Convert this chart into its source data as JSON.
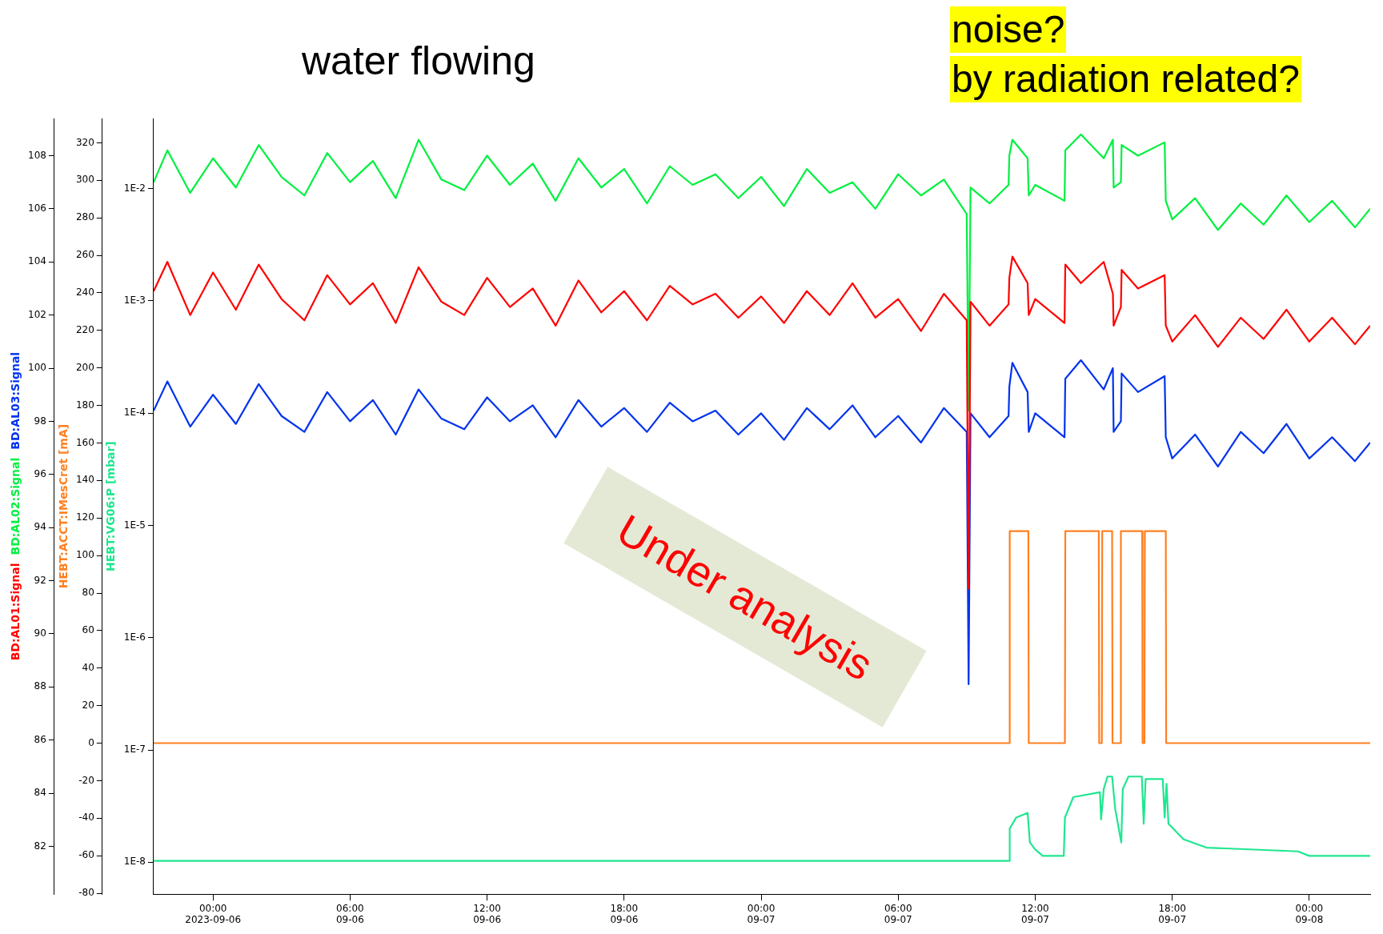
{
  "chart_data": {
    "type": "line",
    "annotations": [
      "water flowing",
      "noise?",
      "by radiation related?",
      "Under analysis"
    ],
    "x": [
      "2023-09-05T21:24",
      "2023-09-05T22:00",
      "2023-09-05T23:00",
      "2023-09-06T00:00",
      "2023-09-06T01:00",
      "2023-09-06T02:00",
      "2023-09-06T03:00",
      "2023-09-06T04:00",
      "2023-09-06T05:00",
      "2023-09-06T06:00",
      "2023-09-06T07:00",
      "2023-09-06T08:00",
      "2023-09-06T09:00",
      "2023-09-06T10:00",
      "2023-09-06T11:00",
      "2023-09-06T12:00",
      "2023-09-06T13:00",
      "2023-09-06T14:00",
      "2023-09-06T15:00",
      "2023-09-06T16:00",
      "2023-09-06T17:00",
      "2023-09-06T18:00",
      "2023-09-06T19:00",
      "2023-09-06T20:00",
      "2023-09-06T21:00",
      "2023-09-06T22:00",
      "2023-09-06T23:00",
      "2023-09-07T00:00",
      "2023-09-07T01:00",
      "2023-09-07T02:00",
      "2023-09-07T03:00",
      "2023-09-07T04:00",
      "2023-09-07T05:00",
      "2023-09-07T06:00",
      "2023-09-07T07:00",
      "2023-09-07T08:00",
      "2023-09-07T09:00",
      "2023-09-07T09:05",
      "2023-09-07T09:10",
      "2023-09-07T10:00",
      "2023-09-07T10:50",
      "2023-09-07T10:52",
      "2023-09-07T11:00",
      "2023-09-07T11:40",
      "2023-09-07T11:43",
      "2023-09-07T12:00",
      "2023-09-07T13:17",
      "2023-09-07T13:19",
      "2023-09-07T14:00",
      "2023-09-07T15:00",
      "2023-09-07T15:24",
      "2023-09-07T15:26",
      "2023-09-07T15:45",
      "2023-09-07T15:47",
      "2023-09-07T16:30",
      "2023-09-07T17:40",
      "2023-09-07T17:43",
      "2023-09-07T18:00",
      "2023-09-07T19:00",
      "2023-09-07T20:00",
      "2023-09-07T21:00",
      "2023-09-07T22:00",
      "2023-09-07T23:00",
      "2023-09-08T00:00",
      "2023-09-08T01:00",
      "2023-09-08T02:00",
      "2023-09-08T02:40"
    ],
    "series": [
      {
        "name": "BD:AL01:Signal",
        "color": "#ff0000",
        "values": [
          102.9,
          104.0,
          102.0,
          103.6,
          102.2,
          103.9,
          102.6,
          101.8,
          103.5,
          102.4,
          103.2,
          101.7,
          103.8,
          102.5,
          102.0,
          103.4,
          102.3,
          103.0,
          101.6,
          103.3,
          102.1,
          102.9,
          101.8,
          103.1,
          102.4,
          102.8,
          101.9,
          102.7,
          101.7,
          102.9,
          102.0,
          103.2,
          101.9,
          102.6,
          101.4,
          102.8,
          101.8,
          91.7,
          102.5,
          101.6,
          102.4,
          103.4,
          104.2,
          103.2,
          102.0,
          102.6,
          101.7,
          103.9,
          103.2,
          104.0,
          102.8,
          101.6,
          102.3,
          103.7,
          103.0,
          103.5,
          101.6,
          101.0,
          102.0,
          100.8,
          101.9,
          101.1,
          102.2,
          101.0,
          101.9,
          100.9,
          101.6
        ]
      },
      {
        "name": "BD:AL02:Signal",
        "color": "#00f040",
        "values": [
          107.0,
          108.2,
          106.6,
          107.9,
          106.8,
          108.4,
          107.2,
          106.5,
          108.1,
          107.0,
          107.8,
          106.4,
          108.6,
          107.1,
          106.7,
          108.0,
          106.9,
          107.7,
          106.3,
          107.9,
          106.8,
          107.5,
          106.2,
          107.6,
          106.9,
          107.3,
          106.4,
          107.2,
          106.1,
          107.5,
          106.6,
          107.0,
          106.0,
          107.3,
          106.5,
          107.1,
          105.8,
          98.4,
          106.8,
          106.2,
          106.9,
          108.0,
          108.6,
          107.9,
          106.5,
          106.9,
          106.3,
          108.2,
          108.8,
          107.9,
          108.6,
          106.8,
          107.0,
          108.4,
          108.0,
          108.5,
          106.3,
          105.6,
          106.4,
          105.2,
          106.2,
          105.4,
          106.5,
          105.5,
          106.3,
          105.3,
          106.0
        ]
      },
      {
        "name": "BD:AL03:Signal",
        "color": "#0033ee",
        "values": [
          98.4,
          99.5,
          97.8,
          99.0,
          97.9,
          99.4,
          98.2,
          97.6,
          99.1,
          98.0,
          98.8,
          97.5,
          99.2,
          98.1,
          97.7,
          98.9,
          98.0,
          98.6,
          97.4,
          98.8,
          97.8,
          98.5,
          97.6,
          98.7,
          98.0,
          98.4,
          97.5,
          98.3,
          97.3,
          98.5,
          97.7,
          98.6,
          97.4,
          98.2,
          97.2,
          98.5,
          97.6,
          88.1,
          98.3,
          97.4,
          98.2,
          99.3,
          100.2,
          99.1,
          97.6,
          98.3,
          97.4,
          99.6,
          100.3,
          99.2,
          100.0,
          97.6,
          98.0,
          99.8,
          99.1,
          99.7,
          97.4,
          96.6,
          97.5,
          96.3,
          97.6,
          96.8,
          97.9,
          96.6,
          97.4,
          96.5,
          97.2
        ]
      },
      {
        "name": "HEBT:ACCT:IMesCret [mA]",
        "color": "#ff8020",
        "axis": "y2",
        "x": [
          "2023-09-05T21:24",
          "2023-09-07T10:52",
          "2023-09-07T10:53",
          "2023-09-07T11:42",
          "2023-09-07T11:43",
          "2023-09-07T13:18",
          "2023-09-07T13:19",
          "2023-09-07T14:47",
          "2023-09-07T14:48",
          "2023-09-07T14:55",
          "2023-09-07T14:56",
          "2023-09-07T15:22",
          "2023-09-07T15:23",
          "2023-09-07T15:44",
          "2023-09-07T15:45",
          "2023-09-07T16:41",
          "2023-09-07T16:42",
          "2023-09-07T16:47",
          "2023-09-07T16:48",
          "2023-09-07T17:43",
          "2023-09-07T17:44",
          "2023-09-08T02:40"
        ],
        "values": [
          0,
          0,
          113,
          113,
          0,
          0,
          113,
          113,
          0,
          0,
          113,
          113,
          0,
          0,
          113,
          113,
          0,
          0,
          113,
          113,
          0,
          0
        ]
      },
      {
        "name": "HEBT:VG06:P [mbar]",
        "color": "#1fe68f",
        "axis": "y3",
        "x": [
          "2023-09-05T21:24",
          "2023-09-07T10:52",
          "2023-09-07T10:53",
          "2023-09-07T11:10",
          "2023-09-07T11:40",
          "2023-09-07T11:46",
          "2023-09-07T12:00",
          "2023-09-07T12:20",
          "2023-09-07T13:15",
          "2023-09-07T13:18",
          "2023-09-07T13:40",
          "2023-09-07T14:50",
          "2023-09-07T14:53",
          "2023-09-07T15:00",
          "2023-09-07T15:10",
          "2023-09-07T15:22",
          "2023-09-07T15:30",
          "2023-09-07T15:46",
          "2023-09-07T15:50",
          "2023-09-07T16:05",
          "2023-09-07T16:40",
          "2023-09-07T16:45",
          "2023-09-07T16:50",
          "2023-09-07T17:35",
          "2023-09-07T17:40",
          "2023-09-07T17:45",
          "2023-09-07T17:50",
          "2023-09-07T18:30",
          "2023-09-07T19:30",
          "2023-09-07T23:30",
          "2023-09-08T00:00",
          "2023-09-08T02:40"
        ],
        "values": [
          1.03e-08,
          1.03e-08,
          2e-08,
          2.5e-08,
          2.75e-08,
          1.5e-08,
          1.3e-08,
          1.14e-08,
          1.14e-08,
          2.5e-08,
          3.8e-08,
          4.2e-08,
          2.4e-08,
          4.5e-08,
          5.8e-08,
          5.8e-08,
          3e-08,
          1.5e-08,
          4.5e-08,
          5.8e-08,
          5.8e-08,
          2.2e-08,
          5.5e-08,
          5.5e-08,
          2.5e-08,
          5e-08,
          2.2e-08,
          1.6e-08,
          1.35e-08,
          1.25e-08,
          1.14e-08,
          1.14e-08
        ]
      }
    ],
    "xlim": [
      "2023-09-05T21:24",
      "2023-09-08T02:40"
    ],
    "xticks": [
      {
        "value": "2023-09-06T00:00",
        "label": "00:00\n2023-09-06"
      },
      {
        "value": "2023-09-06T06:00",
        "label": "06:00\n09-06"
      },
      {
        "value": "2023-09-06T12:00",
        "label": "12:00\n09-06"
      },
      {
        "value": "2023-09-06T18:00",
        "label": "18:00\n09-06"
      },
      {
        "value": "2023-09-07T00:00",
        "label": "00:00\n09-07"
      },
      {
        "value": "2023-09-07T06:00",
        "label": "06:00\n09-07"
      },
      {
        "value": "2023-09-07T12:00",
        "label": "12:00\n09-07"
      },
      {
        "value": "2023-09-07T18:00",
        "label": "18:00\n09-07"
      },
      {
        "value": "2023-09-08T00:00",
        "label": "00:00\n09-08"
      }
    ],
    "ylim": [
      80.2,
      109.4
    ],
    "yticks": [
      82,
      84,
      86,
      88,
      90,
      92,
      94,
      96,
      98,
      100,
      102,
      104,
      106,
      108
    ],
    "y2lim": [
      -80.5,
      333
    ],
    "y2ticks": [
      -80,
      -60,
      -40,
      -20,
      0,
      20,
      40,
      60,
      80,
      100,
      120,
      140,
      160,
      180,
      200,
      220,
      240,
      260,
      280,
      300,
      320
    ],
    "y3lim": [
      5.2e-09,
      0.042
    ],
    "y3ticks": [
      {
        "value": 1e-08,
        "label": "1E-8"
      },
      {
        "value": 1e-07,
        "label": "1E-7"
      },
      {
        "value": 1e-06,
        "label": "1E-6"
      },
      {
        "value": 1e-05,
        "label": "1E-5"
      },
      {
        "value": 0.0001,
        "label": "1E-4"
      },
      {
        "value": 0.001,
        "label": "1E-3"
      },
      {
        "value": 0.01,
        "label": "1E-2"
      }
    ],
    "log": "y3"
  }
}
